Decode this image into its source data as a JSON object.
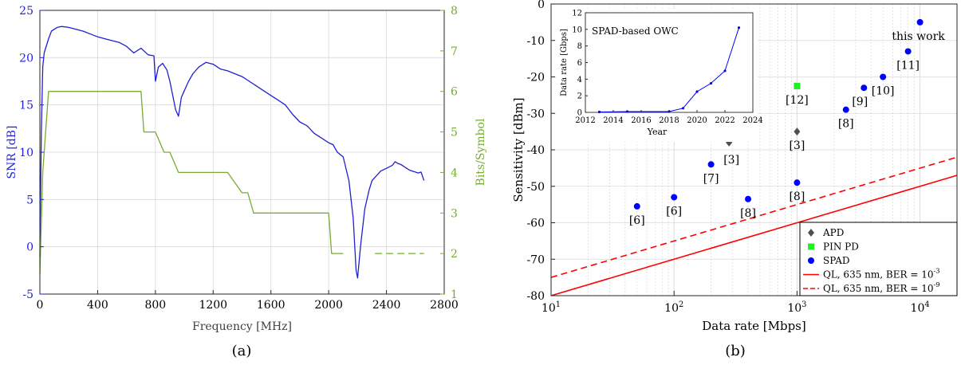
{
  "colors": {
    "snr": "#1f1fd6",
    "bits": "#77ac30",
    "apd": "#505050",
    "pin": "#22ee22",
    "spad": "#0000ff",
    "ql": "#ff0000",
    "axis": "#262626",
    "grid": "#d9d9d9"
  },
  "chart_data": [
    {
      "panel": "(a)",
      "type": "line",
      "xlabel": "Frequency [MHz]",
      "ylabel_left": "SNR [dB]",
      "ylabel_right": "Bits/Symbol",
      "xlim": [
        0,
        2800
      ],
      "ylim_left": [
        -5,
        25
      ],
      "ylim_right": [
        1,
        8
      ],
      "xticks": [
        0,
        400,
        800,
        1200,
        1600,
        2000,
        2400,
        2800
      ],
      "yticks_left": [
        -5,
        0,
        5,
        10,
        15,
        20,
        25
      ],
      "yticks_right": [
        1,
        2,
        3,
        4,
        5,
        6,
        7,
        8
      ],
      "grid": true,
      "series": [
        {
          "name": "SNR [dB]",
          "axis": "left",
          "x": [
            0,
            10,
            20,
            30,
            40,
            50,
            60,
            80,
            100,
            120,
            150,
            200,
            250,
            300,
            350,
            400,
            450,
            500,
            550,
            600,
            650,
            700,
            750,
            790,
            800,
            820,
            850,
            880,
            900,
            920,
            940,
            960,
            980,
            1000,
            1030,
            1060,
            1100,
            1150,
            1200,
            1250,
            1300,
            1350,
            1400,
            1450,
            1500,
            1550,
            1600,
            1650,
            1700,
            1750,
            1800,
            1850,
            1900,
            1950,
            2000,
            2030,
            2060,
            2100,
            2140,
            2170,
            2190,
            2200,
            2220,
            2250,
            2280,
            2300,
            2330,
            2360,
            2400,
            2440,
            2460,
            2480,
            2500,
            2520,
            2540,
            2560,
            2580,
            2600,
            2620,
            2640,
            2660
          ],
          "y": [
            -1,
            12,
            19,
            20.5,
            21,
            21.5,
            22,
            22.8,
            23,
            23.2,
            23.3,
            23.2,
            23,
            22.8,
            22.5,
            22.2,
            22,
            21.8,
            21.6,
            21.2,
            20.5,
            21,
            20.3,
            20.2,
            17.5,
            19,
            19.4,
            18.7,
            17.5,
            16,
            14.5,
            13.8,
            15.8,
            16.5,
            17.5,
            18.3,
            19,
            19.5,
            19.3,
            18.8,
            18.6,
            18.3,
            18,
            17.5,
            17,
            16.5,
            16,
            15.5,
            15,
            14,
            13.2,
            12.8,
            12,
            11.5,
            11,
            10.8,
            10,
            9.5,
            7,
            3,
            -2.5,
            -3.3,
            0,
            4,
            6,
            7,
            7.5,
            8,
            8.3,
            8.6,
            9,
            8.8,
            8.7,
            8.5,
            8.3,
            8.1,
            8,
            7.9,
            7.8,
            7.9,
            7
          ]
        },
        {
          "name": "Bits/Symbol",
          "axis": "right",
          "x": [
            0,
            20,
            40,
            60,
            100,
            400,
            700,
            720,
            760,
            800,
            860,
            900,
            960,
            1000,
            1100,
            1200,
            1300,
            1400,
            1440,
            1480,
            1540,
            1600,
            1640,
            1700,
            1800,
            1900,
            2000,
            2020,
            2060,
            2100
          ],
          "y": [
            1.5,
            4,
            5,
            6,
            6,
            6,
            6,
            5,
            5,
            5,
            4.5,
            4.5,
            4,
            4,
            4,
            4,
            4,
            3.5,
            3.5,
            3,
            3,
            3,
            3,
            3,
            3,
            3,
            3,
            2,
            2,
            2
          ]
        },
        {
          "name": "Bits/Symbol dashed",
          "axis": "right",
          "x": [
            2320,
            2660
          ],
          "y": [
            2,
            2
          ]
        }
      ]
    },
    {
      "panel": "(b)",
      "type": "scatter",
      "xlabel": "Data rate [Mbps]",
      "ylabel": "Sensitivity [dBm]",
      "xscale": "log",
      "xlim": [
        10,
        20000
      ],
      "ylim": [
        -80,
        0
      ],
      "xtick_labels": [
        "10^1",
        "10^2",
        "10^3",
        "10^4"
      ],
      "yticks": [
        -80,
        -70,
        -60,
        -50,
        -40,
        -30,
        -20,
        -10,
        0
      ],
      "grid": true,
      "legend_position": "bottom-right",
      "legend": [
        "APD",
        "PIN PD",
        "SPAD",
        "QL, 635 nm, BER = 10^-3",
        "QL, 635 nm, BER = 10^-9"
      ],
      "series": [
        {
          "name": "APD",
          "marker": "diamond",
          "points": [
            {
              "x": 280,
              "y": -38,
              "label": "[3]"
            },
            {
              "x": 1000,
              "y": -35,
              "label": "[3]"
            }
          ]
        },
        {
          "name": "PIN PD",
          "marker": "square",
          "points": [
            {
              "x": 1000,
              "y": -22.5,
              "label": "[12]"
            }
          ]
        },
        {
          "name": "SPAD",
          "marker": "circle",
          "points": [
            {
              "x": 50,
              "y": -55.5,
              "label": "[6]"
            },
            {
              "x": 100,
              "y": -53,
              "label": "[6]"
            },
            {
              "x": 200,
              "y": -44,
              "label": "[7]"
            },
            {
              "x": 400,
              "y": -53.5,
              "label": "[8]"
            },
            {
              "x": 1000,
              "y": -49,
              "label": "[8]"
            },
            {
              "x": 2500,
              "y": -29,
              "label": "[8]"
            },
            {
              "x": 3500,
              "y": -23,
              "label": "[9]"
            },
            {
              "x": 5000,
              "y": -20,
              "label": "[10]"
            },
            {
              "x": 8000,
              "y": -13,
              "label": "[11]"
            },
            {
              "x": 10000,
              "y": -5,
              "label": "this work"
            }
          ]
        },
        {
          "name": "QL, 635 nm, BER = 10^-3",
          "line": "solid",
          "x": [
            10,
            20000
          ],
          "y": [
            -80,
            -47
          ]
        },
        {
          "name": "QL, 635 nm, BER = 10^-9",
          "line": "dashed",
          "x": [
            10,
            20000
          ],
          "y": [
            -75,
            -42
          ]
        }
      ],
      "inset": {
        "type": "line",
        "title": "SPAD-based OWC",
        "xlabel": "Year",
        "ylabel": "Data rate [Gbps]",
        "xlim": [
          2012,
          2024
        ],
        "ylim": [
          0,
          12
        ],
        "xticks": [
          2012,
          2014,
          2016,
          2018,
          2020,
          2022,
          2024
        ],
        "yticks": [
          0,
          2,
          4,
          6,
          8,
          10,
          12
        ],
        "x": [
          2013,
          2015,
          2018,
          2019,
          2020,
          2021,
          2022,
          2023
        ],
        "y": [
          0.05,
          0.1,
          0.1,
          0.5,
          2.5,
          3.5,
          5,
          10.2
        ]
      }
    }
  ],
  "captions": [
    "(a)",
    "(b)"
  ]
}
